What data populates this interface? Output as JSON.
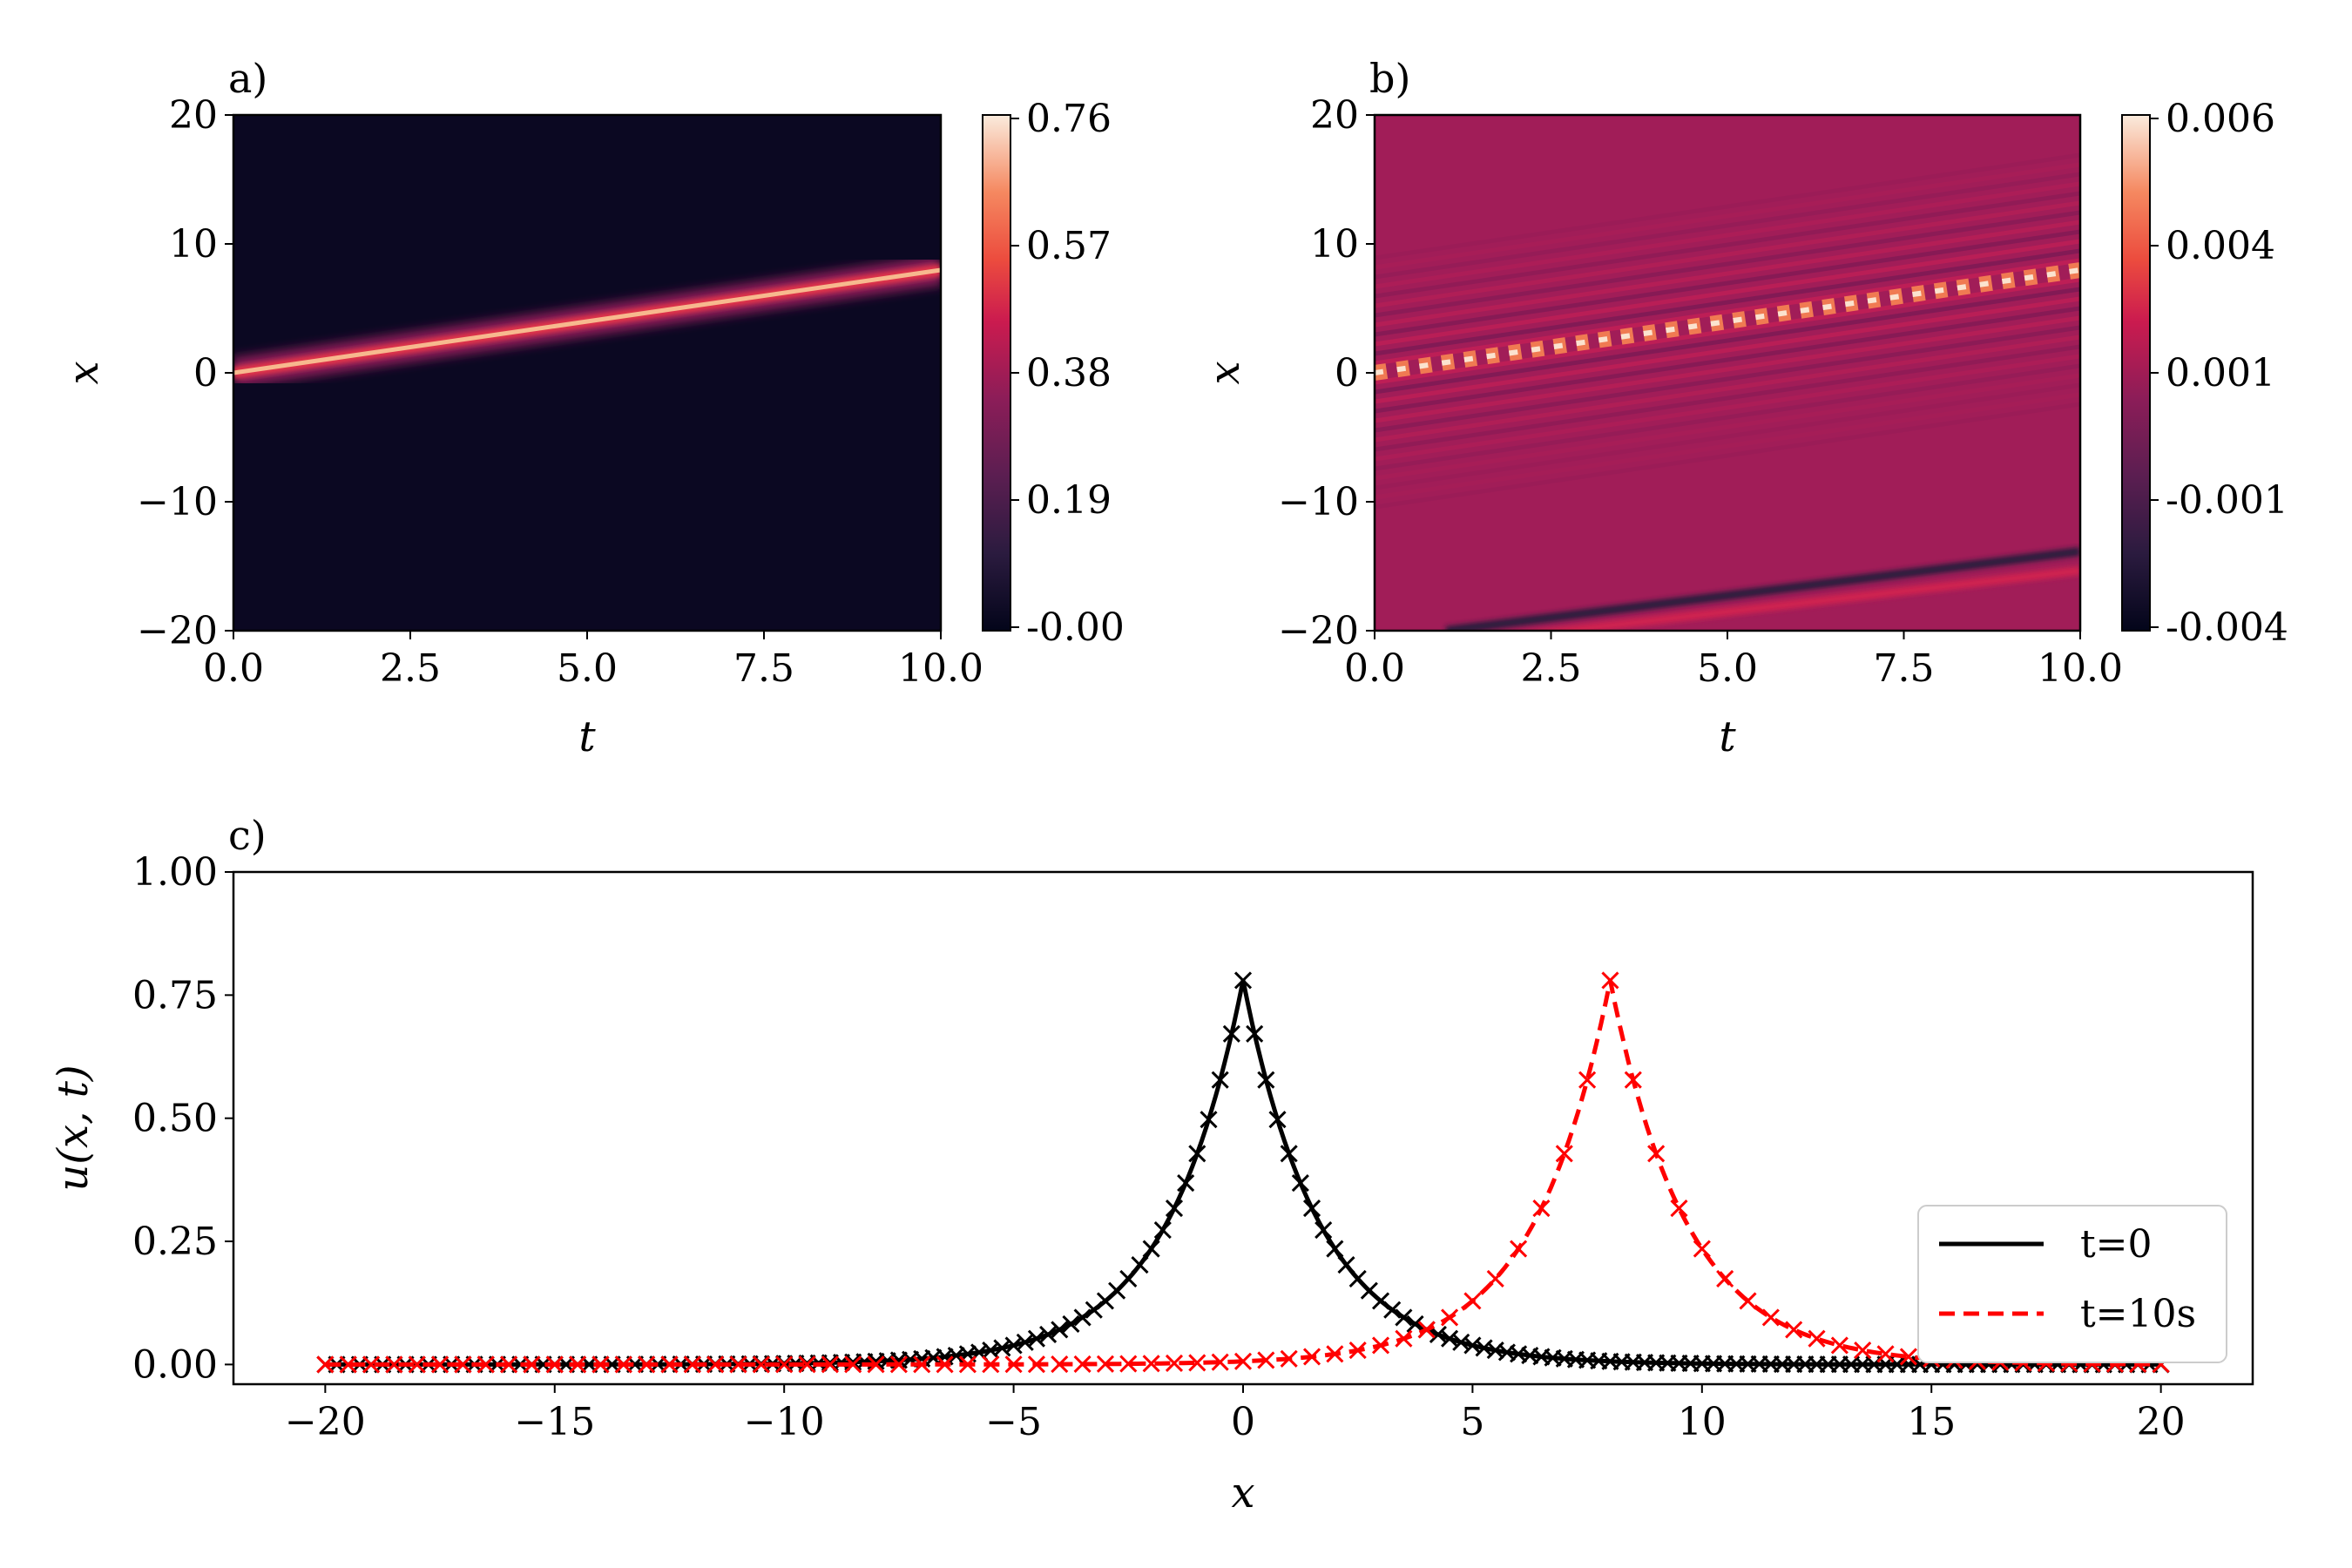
{
  "chart_data": [
    {
      "panel": "a)",
      "type": "heatmap",
      "xlabel": "t",
      "ylabel": "x",
      "xlim": [
        0,
        10
      ],
      "ylim": [
        -20,
        20
      ],
      "xticks": [
        "0.0",
        "2.5",
        "5.0",
        "7.5",
        "10.0"
      ],
      "yticks": [
        "20",
        "10",
        "0",
        "−10",
        "−20"
      ],
      "colorbar_ticks": [
        "0.76",
        "0.57",
        "0.38",
        "0.19",
        "-0.00"
      ],
      "colorbar_range": [
        -0.0,
        0.76
      ],
      "colormap": "rocket",
      "description_values": {
        "ridge_start_x": 0,
        "ridge_end_x": 8,
        "peak": 0.78
      }
    },
    {
      "panel": "b)",
      "type": "heatmap",
      "xlabel": "t",
      "ylabel": "x",
      "xlim": [
        0,
        10
      ],
      "ylim": [
        -20,
        20
      ],
      "xticks": [
        "0.0",
        "2.5",
        "5.0",
        "7.5",
        "10.0"
      ],
      "yticks": [
        "20",
        "10",
        "0",
        "−10",
        "−20"
      ],
      "colorbar_ticks": [
        "0.006",
        "0.004",
        "0.001",
        "-0.001",
        "-0.004"
      ],
      "colorbar_range": [
        -0.004,
        0.006
      ],
      "colormap": "rocket",
      "description_values": {
        "ridge_start_x": 0,
        "ridge_end_x": 8,
        "trough_start_x": -20,
        "trough_end_x": -14
      }
    },
    {
      "panel": "c)",
      "type": "line",
      "xlabel": "x",
      "ylabel": "u(x, t)",
      "xlim": [
        -22,
        22
      ],
      "ylim": [
        -0.04,
        1.0
      ],
      "xticks": [
        "−20",
        "−15",
        "−10",
        "−5",
        "0",
        "5",
        "10",
        "15",
        "20"
      ],
      "yticks": [
        "1.00",
        "0.75",
        "0.50",
        "0.25",
        "0.00"
      ],
      "series": [
        {
          "name": "t=0",
          "color": "#000000",
          "style": "solid",
          "center": 0,
          "amplitude": 0.78,
          "marker": "x"
        },
        {
          "name": "t=10s",
          "color": "#ff0000",
          "style": "dashed",
          "center": 8,
          "amplitude": 0.78,
          "marker": "x"
        }
      ],
      "legend_position": "lower-right"
    }
  ]
}
